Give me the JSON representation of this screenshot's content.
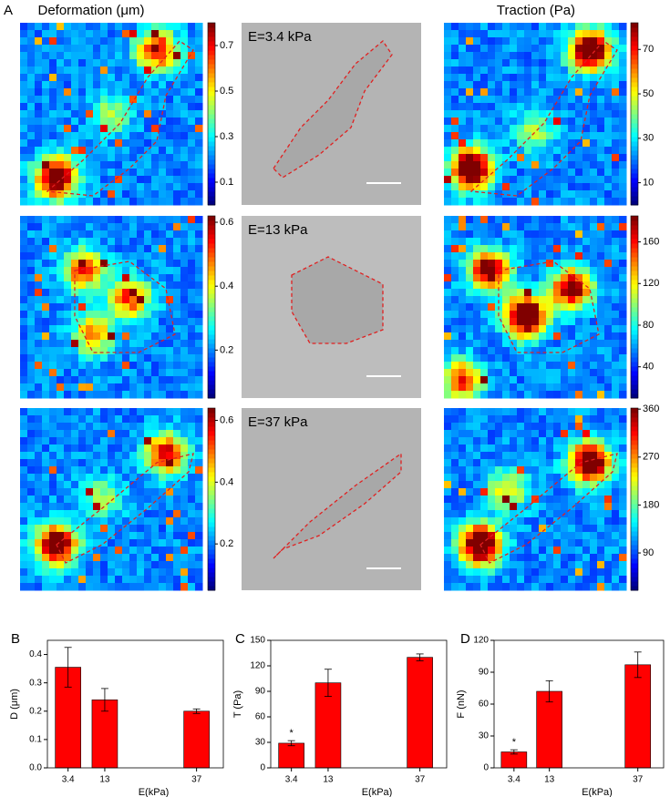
{
  "figure": {
    "panel_label": "A",
    "deformation_title": "Deformation (μm)",
    "traction_title": "Traction (Pa)",
    "rows": [
      {
        "label": "E=3.4 kPa",
        "deformation_colorbar": {
          "lim": [
            0.0,
            0.8
          ],
          "ticks": [
            0.1,
            0.3,
            0.5,
            0.7
          ]
        },
        "traction_colorbar": {
          "lim": [
            0,
            82
          ],
          "ticks": [
            10,
            30,
            50,
            70
          ]
        }
      },
      {
        "label": "E=13 kPa",
        "deformation_colorbar": {
          "lim": [
            0.05,
            0.62
          ],
          "ticks": [
            0.2,
            0.4,
            0.6
          ]
        },
        "traction_colorbar": {
          "lim": [
            10,
            185
          ],
          "ticks": [
            40,
            80,
            120,
            160
          ]
        }
      },
      {
        "label": "E=37 kPa",
        "deformation_colorbar": {
          "lim": [
            0.05,
            0.64
          ],
          "ticks": [
            0.2,
            0.4,
            0.6
          ]
        },
        "traction_colorbar": {
          "lim": [
            20,
            362
          ],
          "ticks": [
            90,
            180,
            270,
            360
          ]
        }
      }
    ]
  },
  "chart_data": [
    {
      "type": "bar",
      "panel": "B",
      "ylabel": "D (μm)",
      "xlabel": "E(kPa)",
      "x": [
        3.4,
        13,
        37
      ],
      "values": [
        0.355,
        0.24,
        0.2
      ],
      "errors": [
        0.07,
        0.04,
        0.008
      ],
      "color": "#ff0000",
      "xlim": [
        -2,
        44
      ],
      "xticks": [
        3.4,
        13,
        37
      ],
      "ylim": [
        0,
        0.45
      ],
      "yticks": [
        {
          "value": 0,
          "label": "0.0"
        },
        0.1,
        0.2,
        0.3,
        0.4
      ]
    },
    {
      "type": "bar",
      "panel": "C",
      "ylabel": "T (Pa)",
      "xlabel": "E(kPa)",
      "x": [
        3.4,
        13,
        37
      ],
      "values": [
        29,
        100,
        130
      ],
      "errors": [
        3,
        16,
        4
      ],
      "annotations": [
        "*",
        null,
        null
      ],
      "color": "#ff0000",
      "xlim": [
        -2,
        44
      ],
      "xticks": [
        3.4,
        13,
        37
      ],
      "ylim": [
        0,
        150
      ],
      "yticks": [
        0,
        30,
        60,
        90,
        120,
        150
      ]
    },
    {
      "type": "bar",
      "panel": "D",
      "ylabel": "F (nN)",
      "xlabel": "E(kPa)",
      "x": [
        3.4,
        13,
        37
      ],
      "values": [
        15,
        72,
        97
      ],
      "errors": [
        2,
        10,
        12
      ],
      "annotations": [
        "*",
        null,
        null
      ],
      "color": "#ff0000",
      "xlim": [
        -2,
        44
      ],
      "xticks": [
        3.4,
        13,
        37
      ],
      "ylim": [
        0,
        120
      ],
      "yticks": [
        0,
        30,
        60,
        90,
        120
      ]
    }
  ]
}
